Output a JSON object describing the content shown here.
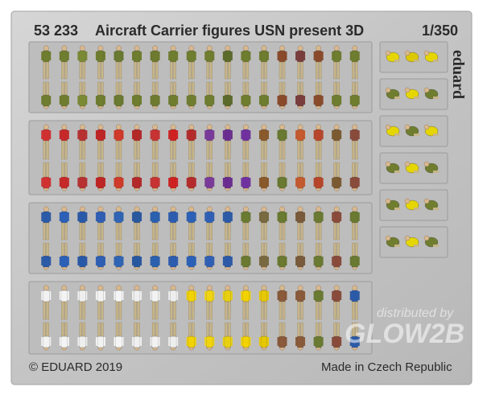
{
  "sheet": {
    "product_number": "53 233",
    "product_title": "Aircraft Carrier figures USN present 3D",
    "scale": "1/350",
    "copyright": "© EDUARD 2019",
    "origin": "Made in Czech Republic",
    "brand_logo": "eduard",
    "watermark_line1": "distributed by",
    "watermark_logo": "GLOW2B"
  },
  "rows": [
    {
      "name": "row-1",
      "shirts": [
        "#6f7d2e",
        "#6f7d2e",
        "#7a8a34",
        "#6f7d2e",
        "#6a7a30",
        "#6f7d2e",
        "#6e7b2e",
        "#6f7d2e",
        "#6f7d2e",
        "#6f7d2e",
        "#5c6a2a",
        "#6f7d2e",
        "#6f7d2e",
        "#8a4a2a",
        "#7a3c3c",
        "#8a4a2a",
        "#6f7d2e",
        "#6f7d2e"
      ],
      "trousers": "#c7b58a"
    },
    {
      "name": "row-2",
      "shirts": [
        "#d23030",
        "#c82828",
        "#b83030",
        "#c02424",
        "#d13a2a",
        "#b52828",
        "#c93232",
        "#d02020",
        "#b52a2a",
        "#7a3a9a",
        "#6a2c90",
        "#7030a0",
        "#8a5a2a",
        "#6a7a30",
        "#c65a2e",
        "#b8452a",
        "#7c5a30",
        "#8a4a3a"
      ],
      "trousers": "#c7b58a"
    },
    {
      "name": "row-3",
      "shirts": [
        "#2a5aa8",
        "#2a60b8",
        "#2858a8",
        "#2f5fb5",
        "#3065b5",
        "#2858a0",
        "#2a60b0",
        "#2c5cb0",
        "#2a60b8",
        "#2f5fb5",
        "#2a5aa8",
        "#6a7a30",
        "#7a6a40",
        "#6a7a30",
        "#7a5a3a",
        "#6a7a30",
        "#8a4a3a",
        "#6a7a30"
      ],
      "trousers": "#c7b58a"
    },
    {
      "name": "row-4",
      "shirts": [
        "#f2f2f2",
        "#f4f4f4",
        "#eeeeee",
        "#f2f2f2",
        "#f5f5f5",
        "#efefef",
        "#f2f2f2",
        "#eeeeee",
        "#f2d200",
        "#f0d410",
        "#e8d010",
        "#f2d200",
        "#e6c800",
        "#8a5a3a",
        "#8a5a3a",
        "#6a7a30",
        "#8a4a3a",
        "#2a5aa8"
      ],
      "trousers": "#c7b58a"
    }
  ],
  "side_panels": [
    {
      "name": "side-panel-1",
      "figures": [
        "#e6d600",
        "#dcc800",
        "#e6d600"
      ]
    },
    {
      "name": "side-panel-2",
      "figures": [
        "#6f7d2e",
        "#e6d600",
        "#6f7d2e"
      ]
    },
    {
      "name": "side-panel-3",
      "figures": [
        "#e6d600",
        "#6f7d2e",
        "#e6d600"
      ]
    },
    {
      "name": "side-panel-4",
      "figures": [
        "#6f7d2e",
        "#e6d600",
        "#6f7d2e"
      ]
    },
    {
      "name": "side-panel-5",
      "figures": [
        "#6f7d2e",
        "#e6d600",
        "#6f7d2e"
      ]
    },
    {
      "name": "side-panel-6",
      "figures": [
        "#6f7d2e",
        "#e6d600",
        "#6f7d2e"
      ]
    }
  ],
  "colors": {
    "fret": "#c9c9c9",
    "panel": "#bdbdbd",
    "border": "#9c9c9c"
  }
}
